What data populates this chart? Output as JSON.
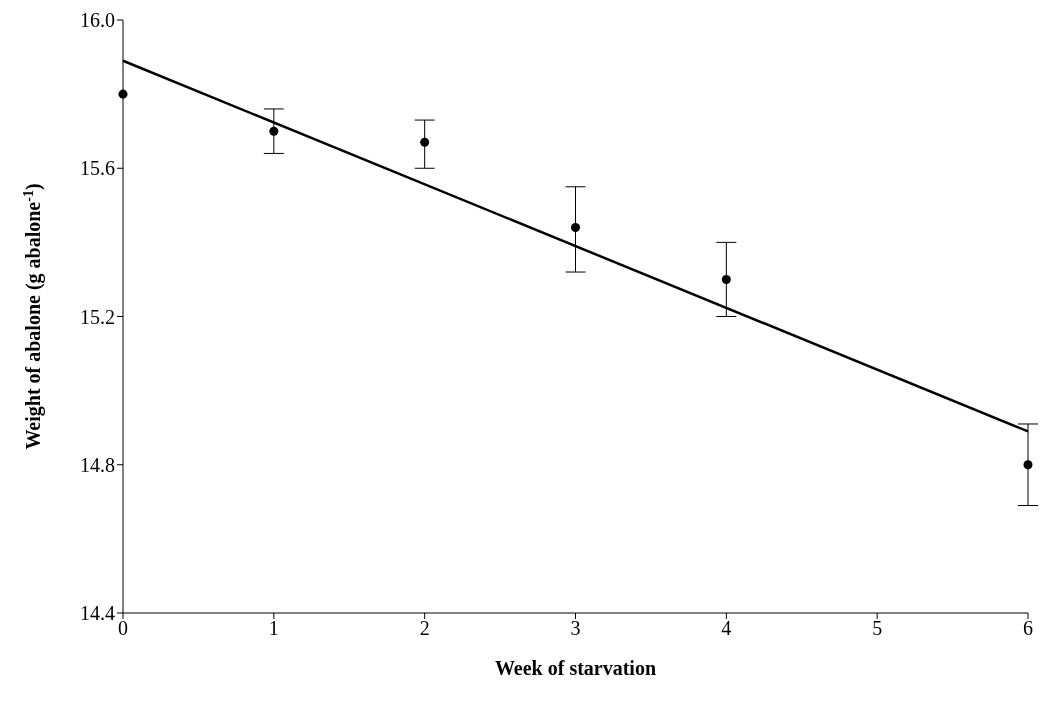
{
  "chart_data": {
    "type": "scatter",
    "xlabel": "Week of starvation",
    "ylabel": "Weight of abalone  (g abalone$^{-1}$)",
    "x": [
      0,
      1,
      2,
      3,
      4,
      6
    ],
    "series": [
      {
        "color": "#000000",
        "marker": "circle",
        "values": [
          15.8,
          15.7,
          15.67,
          15.44,
          15.3,
          14.8
        ],
        "errors": [
          null,
          [
            15.64,
            15.76
          ],
          [
            15.6,
            15.73
          ],
          [
            15.32,
            15.55
          ],
          [
            15.2,
            15.4
          ],
          [
            14.69,
            14.91
          ]
        ]
      },
      {
        "type": "line",
        "color": "#000000",
        "marker": "none",
        "line_style": "solid",
        "x": [
          0,
          6
        ],
        "values": [
          15.89,
          14.89
        ]
      }
    ],
    "xlim": [
      0,
      6
    ],
    "xticks": [
      0,
      1,
      2,
      3,
      4,
      5,
      6
    ],
    "ylim": [
      14.4,
      16.0
    ],
    "yticks": [
      {
        "value": 14.4,
        "label": "14.4"
      },
      {
        "value": 14.8,
        "label": "14.8"
      },
      {
        "value": 15.2,
        "label": "15.2"
      },
      {
        "value": 15.6,
        "label": "15.6"
      },
      {
        "value": 16.0,
        "label": "16.0"
      }
    ],
    "grid": false,
    "legend": false
  }
}
